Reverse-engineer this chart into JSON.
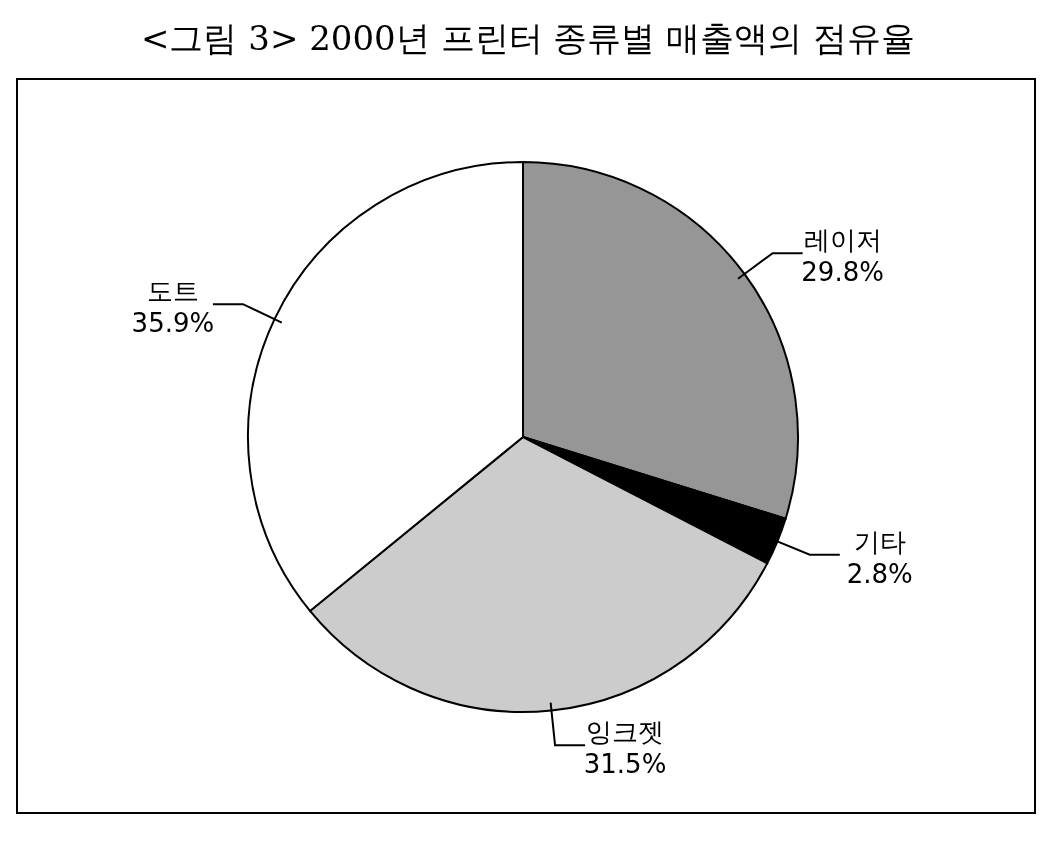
{
  "chart_data": {
    "type": "pie",
    "title": "<그림 3> 2000년 프린터 종류별 매출액의 점유율",
    "categories": [
      "레이저",
      "기타",
      "잉크젯",
      "도트"
    ],
    "values": [
      29.8,
      2.8,
      31.5,
      35.9
    ],
    "colors": [
      "#969696",
      "#000000",
      "#cccccc",
      "#ffffff"
    ],
    "value_labels": [
      "29.8%",
      "2.8%",
      "31.5%",
      "35.9%"
    ],
    "legend": false
  }
}
